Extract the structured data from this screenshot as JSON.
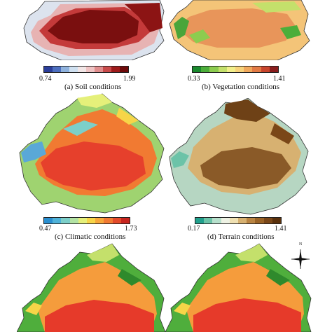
{
  "panels": [
    {
      "caption": "(a) Soil conditions",
      "scale_min": "0.74",
      "scale_max": "1.99",
      "colorbar_colors": [
        "#2b3e9a",
        "#4d6fbf",
        "#8fb2dd",
        "#cfe0f0",
        "#f2e6e6",
        "#efc3c3",
        "#e08d8d",
        "#c84a4a",
        "#9e1b1b",
        "#6e0a0a"
      ]
    },
    {
      "caption": "(b) Vegetation conditions",
      "scale_min": "0.33",
      "scale_max": "1.41",
      "colorbar_colors": [
        "#1a8a2e",
        "#4cae3a",
        "#8ccc4f",
        "#c4e06b",
        "#f2ef8a",
        "#f7d27a",
        "#f0a85c",
        "#e27a44",
        "#c8452d",
        "#8a1e1e"
      ]
    },
    {
      "caption": "(c) Climatic conditions",
      "scale_min": "0.47",
      "scale_max": "1.73",
      "colorbar_colors": [
        "#2a8fd0",
        "#4fb2d8",
        "#7ccfc9",
        "#b3e3a4",
        "#e5f07a",
        "#f7d548",
        "#f7a73a",
        "#f17a32",
        "#e34a2a",
        "#c8251f"
      ]
    },
    {
      "caption": "(d) Terrain conditions",
      "scale_min": "0.17",
      "scale_max": "1.41",
      "colorbar_colors": [
        "#20a08c",
        "#6cc3a8",
        "#b7e0cc",
        "#eef2e4",
        "#efe0b2",
        "#d7b171",
        "#b98442",
        "#9a6326",
        "#7a4718",
        "#5a310c"
      ]
    }
  ],
  "north_arrow": {
    "label": "N"
  },
  "map_colors": {
    "soil_bg": "#dce3ee",
    "soil_mid": "#c43a3a",
    "soil_core": "#7a0f0f",
    "veg_bg": "#f4c478",
    "veg_mid": "#e8955a",
    "veg_green": "#4aa53a",
    "clim_bg": "#9fd370",
    "clim_core": "#e6402c",
    "clim_blue": "#5aa8d8",
    "terr_bg": "#b6d6c2",
    "terr_core": "#8a5a28",
    "terr_dark": "#6e4116",
    "bottom_red": "#e63a2a",
    "bottom_orange": "#f59c3c",
    "bottom_green": "#4fae3c"
  }
}
